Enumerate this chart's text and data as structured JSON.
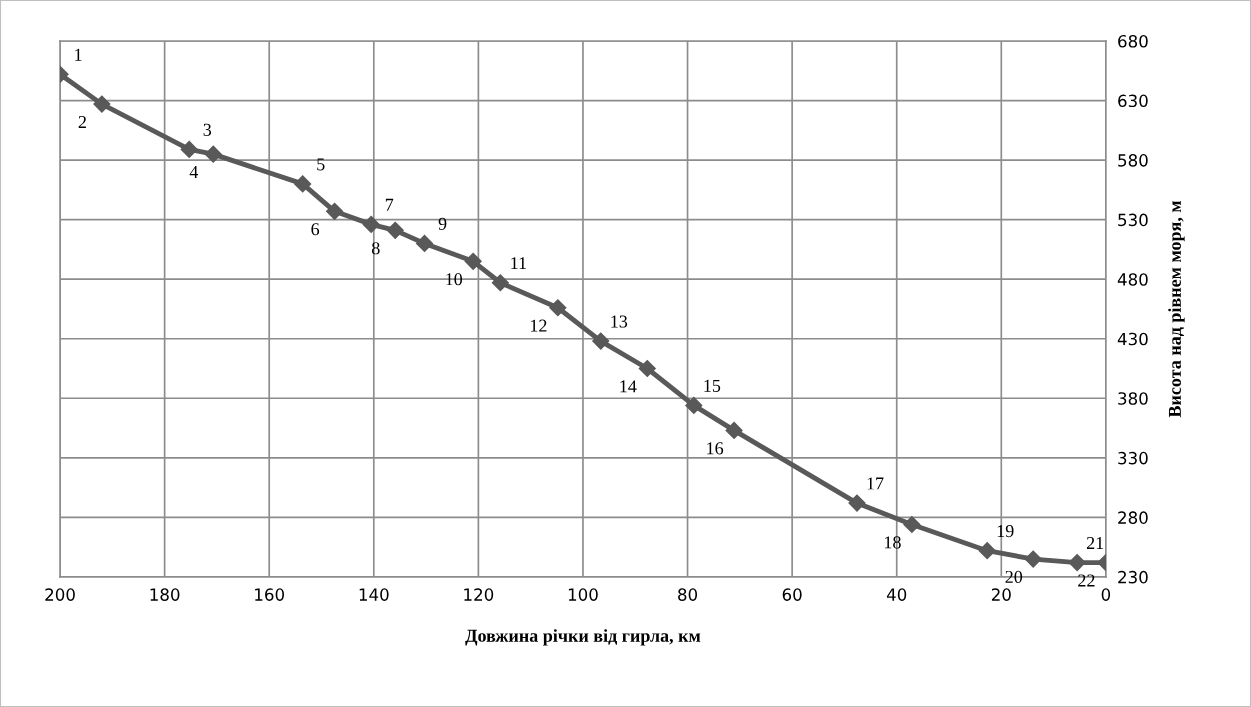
{
  "chart_data": {
    "type": "line",
    "xlabel": "Довжина річки від гирла, км",
    "ylabel": "Висота над рівнем моря, м",
    "series": [
      {
        "color": "#595959",
        "x": [
          200,
          192.0,
          175.3,
          170.7,
          153.6,
          147.5,
          140.5,
          135.9,
          130.3,
          121.0,
          115.8,
          104.8,
          96.6,
          87.7,
          78.8,
          71.1,
          47.6,
          37.1,
          22.7,
          13.9,
          5.5,
          0
        ],
        "values": [
          652,
          627,
          589,
          585,
          560,
          537,
          526,
          521,
          510,
          495,
          477,
          456,
          428,
          405,
          374,
          353,
          292,
          274,
          252,
          245,
          242,
          242
        ]
      }
    ],
    "annotations": [
      {
        "text": "1",
        "x": 200,
        "y": 652
      },
      {
        "text": "2",
        "x": 192.0,
        "y": 627
      },
      {
        "text": "3",
        "x": 175.3,
        "y": 589
      },
      {
        "text": "4",
        "x": 170.7,
        "y": 585
      },
      {
        "text": "5",
        "x": 153.6,
        "y": 560
      },
      {
        "text": "6",
        "x": 147.5,
        "y": 537
      },
      {
        "text": "7",
        "x": 140.5,
        "y": 526
      },
      {
        "text": "8",
        "x": 135.9,
        "y": 521
      },
      {
        "text": "9",
        "x": 130.3,
        "y": 510
      },
      {
        "text": "10",
        "x": 121.0,
        "y": 495
      },
      {
        "text": "11",
        "x": 115.8,
        "y": 477
      },
      {
        "text": "12",
        "x": 104.8,
        "y": 456
      },
      {
        "text": "13",
        "x": 96.6,
        "y": 428
      },
      {
        "text": "14",
        "x": 87.7,
        "y": 405
      },
      {
        "text": "15",
        "x": 78.8,
        "y": 374
      },
      {
        "text": "16",
        "x": 71.1,
        "y": 353
      },
      {
        "text": "17",
        "x": 47.6,
        "y": 292
      },
      {
        "text": "18",
        "x": 37.1,
        "y": 274
      },
      {
        "text": "19",
        "x": 22.7,
        "y": 252
      },
      {
        "text": "20",
        "x": 13.9,
        "y": 245
      },
      {
        "text": "21",
        "x": 5.5,
        "y": 242
      },
      {
        "text": "22",
        "x": 0,
        "y": 242
      }
    ],
    "xlim": [
      200,
      0
    ],
    "xticks": [
      200,
      180,
      160,
      140,
      120,
      100,
      80,
      60,
      40,
      20,
      0
    ],
    "ylim": [
      230,
      680
    ],
    "yticks": [
      230,
      280,
      330,
      380,
      430,
      480,
      530,
      580,
      630,
      680
    ],
    "grid": true,
    "marker": "diamond",
    "line_style": "solid",
    "legend": false
  }
}
